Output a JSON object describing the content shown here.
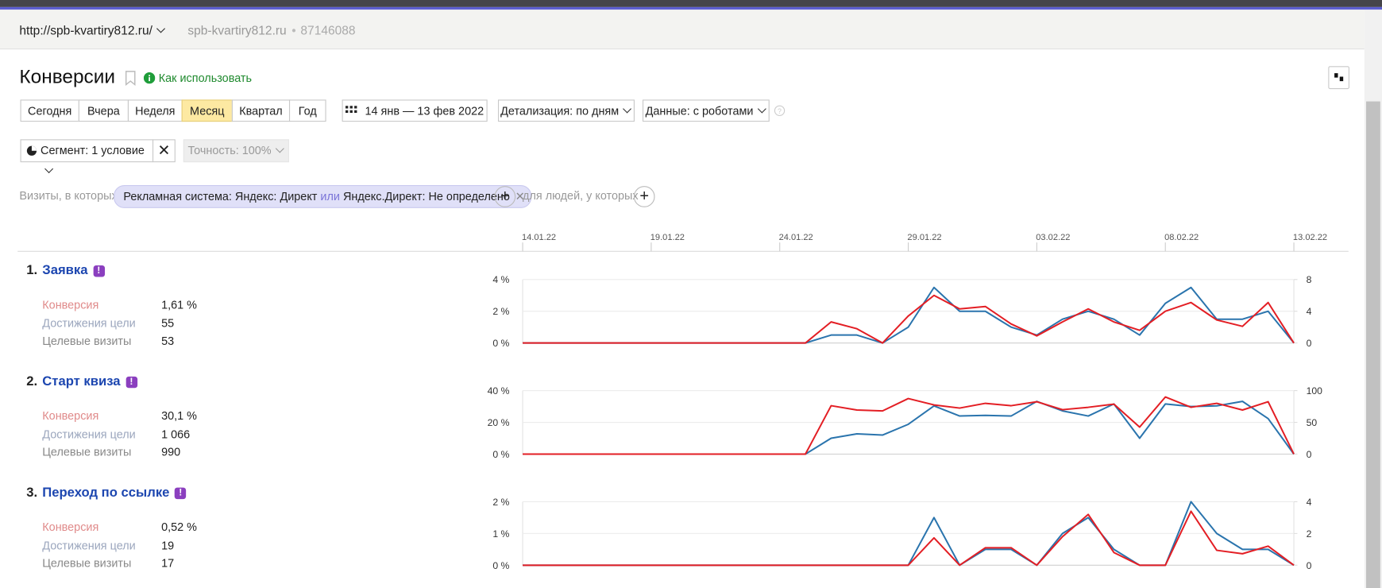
{
  "header": {
    "site_url": "http://spb-kvartiry812.ru/",
    "site_name": "spb-kvartiry812.ru",
    "counter_id": "87146088"
  },
  "report": {
    "title": "Конверсии",
    "help_link": "Как использовать",
    "periods": [
      "Сегодня",
      "Вчера",
      "Неделя",
      "Месяц",
      "Квартал",
      "Год"
    ],
    "date_range": "14 янв — 13 фев 2022",
    "detail": "Детализация: по дням",
    "data_filter": "Данные: с роботами",
    "segment": "Сегмент: 1 условие",
    "accuracy": "Точность: 100%",
    "visits_label": "Визиты, в которых",
    "condition": {
      "part1": "Рекламная система: Яндекс: Директ",
      "or": "или",
      "part2": "Яндекс.Директ: Не определено"
    },
    "people_label": "для людей, у которых"
  },
  "date_axis": {
    "categories": [
      "14.01.22",
      null,
      null,
      null,
      null,
      "19.01.22",
      null,
      null,
      null,
      null,
      "24.01.22",
      null,
      null,
      null,
      null,
      "29.01.22",
      null,
      null,
      null,
      null,
      "03.02.22",
      null,
      null,
      null,
      null,
      "08.02.22",
      null,
      null,
      null,
      null,
      "13.02.22"
    ]
  },
  "goals": [
    {
      "number": "1.",
      "visits_label": "Целевые визиты",
      "conversion": "1,61 %",
      "achievements": "55",
      "visits": "53"
    },
    {
      "number": "2.",
      "visits_label": "Целевые визиты",
      "conversion": "30,1 %",
      "achievements": "1 066",
      "visits": "990"
    },
    {
      "number": "3.",
      "visits_label": "Целевые визиты",
      "conversion": "0,52 %",
      "achievements": "19",
      "visits": "17"
    }
  ],
  "chart_data": [
    {
      "type": "line",
      "title": "Заявка",
      "grid": true,
      "ylim": [
        0,
        4
      ],
      "yticks": [
        {
          "value": 0,
          "label": "0 %"
        },
        {
          "value": 2,
          "label": "2 %"
        },
        {
          "value": 4,
          "label": "4 %"
        }
      ],
      "y2lim": [
        0,
        8
      ],
      "y2ticks": [
        0,
        4,
        8
      ],
      "series": [
        {
          "name": "Конверсия",
          "color": "#e31e24",
          "values": [
            0,
            0,
            0,
            0,
            0,
            0,
            0,
            0,
            0,
            0,
            0,
            0,
            1.33,
            0.9,
            0,
            1.7,
            3.0,
            2.15,
            2.3,
            1.2,
            0.45,
            1.33,
            2.15,
            1.33,
            0.8,
            2.0,
            2.55,
            1.45,
            1.05,
            2.55,
            0
          ]
        },
        {
          "name": "Достижения цели",
          "color": "#2a74ad",
          "axis": "y2",
          "values": [
            0,
            0,
            0,
            0,
            0,
            0,
            0,
            0,
            0,
            0,
            0,
            0,
            1,
            1,
            0,
            2,
            7,
            4,
            4,
            2,
            1,
            3,
            4,
            3,
            1,
            5,
            7,
            3,
            3,
            4,
            0
          ]
        }
      ]
    },
    {
      "type": "line",
      "title": "Старт квиза",
      "grid": true,
      "ylim": [
        0,
        40
      ],
      "yticks": [
        {
          "value": 0,
          "label": "0 %"
        },
        {
          "value": 20,
          "label": "20 %"
        },
        {
          "value": 40,
          "label": "40 %"
        }
      ],
      "y2lim": [
        0,
        100
      ],
      "y2ticks": [
        0,
        50,
        100
      ],
      "series": [
        {
          "name": "Конверсия",
          "color": "#e31e24",
          "values": [
            0,
            0,
            0,
            0,
            0,
            0,
            0,
            0,
            0,
            0,
            0,
            0,
            30.5,
            27.8,
            27.2,
            35,
            31,
            29,
            32,
            30.5,
            33,
            28,
            29.5,
            31.5,
            17,
            36,
            29.5,
            32,
            27.8,
            33,
            0
          ]
        },
        {
          "name": "Достижения цели",
          "color": "#2a74ad",
          "axis": "y2",
          "values": [
            0,
            0,
            0,
            0,
            0,
            0,
            0,
            0,
            0,
            0,
            0,
            0,
            25,
            32,
            30,
            47,
            76,
            60,
            61,
            60,
            83,
            68,
            60,
            79,
            25,
            79,
            75,
            76,
            83,
            56,
            0
          ]
        }
      ]
    },
    {
      "type": "line",
      "title": "Переход по ссылке",
      "grid": true,
      "ylim": [
        0,
        2
      ],
      "yticks": [
        {
          "value": 0,
          "label": "0 %"
        },
        {
          "value": 1,
          "label": "1 %"
        },
        {
          "value": 2,
          "label": "2 %"
        }
      ],
      "y2lim": [
        0,
        4
      ],
      "y2ticks": [
        0,
        2,
        4
      ],
      "series": [
        {
          "name": "Конверсия",
          "color": "#e31e24",
          "values": [
            0,
            0,
            0,
            0,
            0,
            0,
            0,
            0,
            0,
            0,
            0,
            0,
            0,
            0,
            0,
            0,
            0.86,
            0,
            0.55,
            0.55,
            0,
            0.9,
            1.6,
            0.4,
            0,
            0,
            1.7,
            0.47,
            0.36,
            0.6,
            0
          ]
        },
        {
          "name": "Достижения цели",
          "color": "#2a74ad",
          "axis": "y2",
          "values": [
            0,
            0,
            0,
            0,
            0,
            0,
            0,
            0,
            0,
            0,
            0,
            0,
            0,
            0,
            0,
            0,
            3,
            0,
            1,
            1,
            0,
            2,
            3,
            1,
            0,
            0,
            4,
            2,
            1,
            1,
            0
          ]
        }
      ]
    }
  ]
}
